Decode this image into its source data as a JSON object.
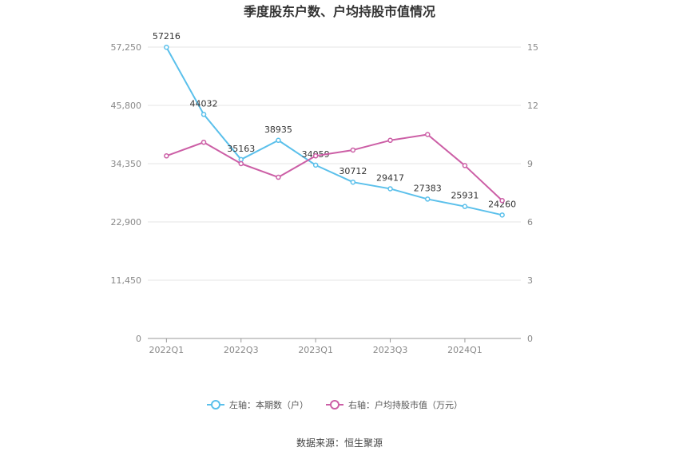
{
  "chart_data": {
    "type": "line",
    "title": "季度股东户数、户均持股市值情况",
    "categories": [
      "2022Q1",
      "2022Q2",
      "2022Q3",
      "2022Q4",
      "2023Q1",
      "2023Q2",
      "2023Q3",
      "2023Q4",
      "2024Q1",
      "2024Q2"
    ],
    "x_tick_labels": [
      "2022Q1",
      "2022Q3",
      "2023Q1",
      "2023Q3",
      "2024Q1"
    ],
    "left_axis": {
      "ticks": [
        "0",
        "11,450",
        "22,900",
        "34,350",
        "45,800",
        "57,250"
      ],
      "ylim": [
        0,
        57250
      ]
    },
    "right_axis": {
      "ticks": [
        "0",
        "3",
        "6",
        "9",
        "12",
        "15"
      ],
      "ylim": [
        0,
        15
      ]
    },
    "series": [
      {
        "name": "左轴：本期数（户）",
        "axis": "left",
        "color": "#5bc0eb",
        "values": [
          57216,
          44032,
          35163,
          38935,
          34059,
          30712,
          29417,
          27383,
          25931,
          24260
        ],
        "labels": [
          "57216",
          "44032",
          "35163",
          "38935",
          "34059",
          "30712",
          "29417",
          "27383",
          "25931",
          "24260"
        ]
      },
      {
        "name": "右轴：户均持股市值（万元）",
        "axis": "right",
        "color": "#cc5fa6",
        "values": [
          9.4,
          10.1,
          9.0,
          8.3,
          9.4,
          9.7,
          10.2,
          10.5,
          8.9,
          7.1
        ]
      }
    ],
    "grid": true,
    "legend_position": "bottom"
  },
  "source": "数据来源：恒生聚源"
}
